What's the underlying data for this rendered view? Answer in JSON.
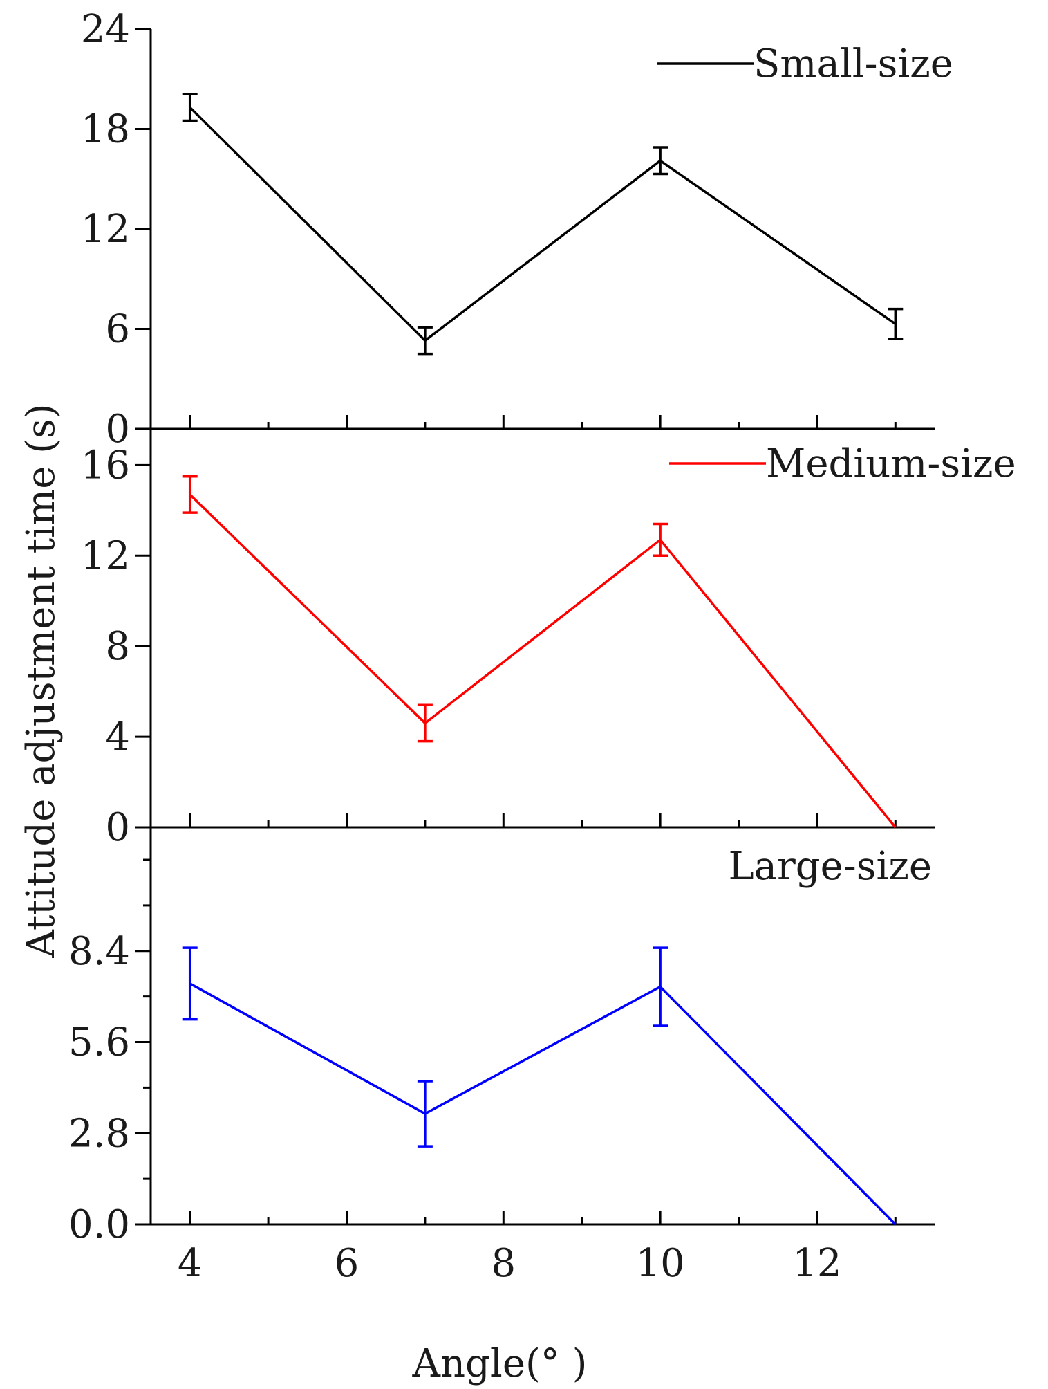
{
  "chart_data": {
    "type": "line",
    "layout": "stacked-panels",
    "shared_x": {
      "label": "Angle(° )",
      "range": [
        3.5,
        13.5
      ],
      "major_ticks": [
        4,
        6,
        8,
        10,
        12
      ],
      "minor_ticks": [
        5,
        7,
        9,
        11,
        13
      ]
    },
    "ylabel": "Attitude adjustment time (s)",
    "panels": [
      {
        "series_name": "Small-size",
        "color": "#000000",
        "x": [
          4,
          7,
          10,
          13
        ],
        "y": [
          19.3,
          5.3,
          16.1,
          6.3
        ],
        "err": [
          0.8,
          0.8,
          0.8,
          0.9
        ],
        "ylim": [
          0,
          24
        ],
        "yticks": [
          0,
          6,
          12,
          18,
          24
        ],
        "ytick_labels": [
          "0",
          "6",
          "12",
          "18",
          "24"
        ],
        "legend_has_line": true,
        "legend_position": "top-right"
      },
      {
        "series_name": "Medium-size",
        "color": "#ff0000",
        "x": [
          4,
          7,
          10,
          13
        ],
        "y": [
          14.7,
          4.6,
          12.7,
          0
        ],
        "err": [
          0.8,
          0.8,
          0.7,
          0
        ],
        "ylim": [
          0,
          17.6
        ],
        "yticks": [
          0,
          4,
          8,
          12,
          16
        ],
        "ytick_labels": [
          "0",
          "4",
          "8",
          "12",
          "16"
        ],
        "legend_has_line": true,
        "legend_position": "top-right"
      },
      {
        "series_name": "Large-size",
        "color": "#0000ff",
        "x": [
          4,
          7,
          10,
          13
        ],
        "y": [
          7.4,
          3.4,
          7.3,
          0
        ],
        "err": [
          1.1,
          1.0,
          1.2,
          0
        ],
        "ylim": [
          0,
          12.2
        ],
        "yticks": [
          0,
          2.8,
          5.6,
          8.4
        ],
        "ytick_labels": [
          "0.0",
          "2.8",
          "5.6",
          "8.4"
        ],
        "minor_yticks": [
          1.4,
          4.2,
          7.0,
          9.8,
          11.2
        ],
        "legend_has_line": false,
        "legend_position": "top-right"
      }
    ]
  }
}
